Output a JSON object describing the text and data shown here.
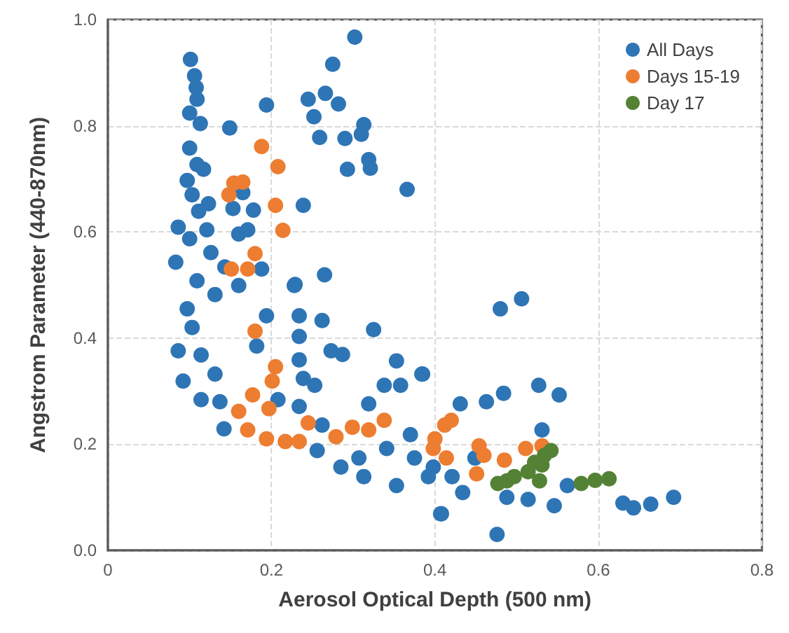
{
  "chart_data": {
    "type": "scatter",
    "xlabel": "Aerosol Optical Depth (500 nm)",
    "ylabel": "Angstrom Parameter (440-870nm)",
    "xlim": [
      0,
      0.8
    ],
    "xticks": [
      0,
      0.2,
      0.4,
      0.6,
      0.8
    ],
    "ylim": [
      0,
      1
    ],
    "yticks": [
      {
        "value": 0,
        "label": "0.0"
      },
      {
        "value": 0.2,
        "label": "0.2"
      },
      {
        "value": 0.4,
        "label": "0.4"
      },
      {
        "value": 0.6,
        "label": "0.6"
      },
      {
        "value": 0.8,
        "label": "0.8"
      },
      {
        "value": 1,
        "label": "1.0"
      }
    ],
    "grid": true,
    "legend": "top right",
    "marker": "circle",
    "series": [
      {
        "name": "All Days",
        "color": "#2e75b6",
        "x": [
          0.101,
          0.106,
          0.108,
          0.109,
          0.1,
          0.113,
          0.149,
          0.194,
          0.302,
          0.275,
          0.245,
          0.266,
          0.282,
          0.252,
          0.259,
          0.29,
          0.313,
          0.31,
          0.319,
          0.321,
          0.293,
          0.366,
          0.239,
          0.1,
          0.109,
          0.117,
          0.097,
          0.103,
          0.123,
          0.111,
          0.153,
          0.178,
          0.165,
          0.086,
          0.1,
          0.121,
          0.16,
          0.171,
          0.265,
          0.229,
          0.126,
          0.083,
          0.188,
          0.143,
          0.109,
          0.103,
          0.086,
          0.114,
          0.131,
          0.092,
          0.114,
          0.137,
          0.142,
          0.097,
          0.131,
          0.16,
          0.182,
          0.194,
          0.228,
          0.234,
          0.234,
          0.234,
          0.239,
          0.253,
          0.234,
          0.208,
          0.262,
          0.273,
          0.287,
          0.325,
          0.353,
          0.384,
          0.338,
          0.358,
          0.319,
          0.262,
          0.256,
          0.285,
          0.313,
          0.353,
          0.341,
          0.37,
          0.398,
          0.421,
          0.407,
          0.307,
          0.375,
          0.48,
          0.506,
          0.385,
          0.431,
          0.463,
          0.484,
          0.527,
          0.552,
          0.531,
          0.392,
          0.434,
          0.408,
          0.476,
          0.488,
          0.514,
          0.546,
          0.562,
          0.63,
          0.643,
          0.664,
          0.692,
          0.449
        ],
        "values": [
          0.925,
          0.894,
          0.872,
          0.85,
          0.824,
          0.804,
          0.796,
          0.839,
          0.967,
          0.916,
          0.85,
          0.861,
          0.841,
          0.817,
          0.778,
          0.776,
          0.802,
          0.784,
          0.736,
          0.72,
          0.718,
          0.68,
          0.65,
          0.758,
          0.727,
          0.718,
          0.697,
          0.67,
          0.653,
          0.639,
          0.644,
          0.641,
          0.674,
          0.609,
          0.587,
          0.604,
          0.596,
          0.604,
          0.519,
          0.501,
          0.561,
          0.543,
          0.53,
          0.534,
          0.508,
          0.42,
          0.376,
          0.368,
          0.332,
          0.319,
          0.284,
          0.28,
          0.229,
          0.455,
          0.482,
          0.499,
          0.385,
          0.442,
          0.499,
          0.442,
          0.403,
          0.359,
          0.324,
          0.311,
          0.271,
          0.284,
          0.433,
          0.376,
          0.369,
          0.416,
          0.357,
          0.332,
          0.311,
          0.311,
          0.276,
          0.236,
          0.188,
          0.157,
          0.139,
          0.122,
          0.192,
          0.218,
          0.157,
          0.139,
          0.069,
          0.174,
          0.174,
          0.455,
          0.474,
          0.332,
          0.276,
          0.28,
          0.296,
          0.311,
          0.293,
          0.227,
          0.139,
          0.109,
          0.069,
          0.03,
          0.1,
          0.096,
          0.084,
          0.122,
          0.089,
          0.08,
          0.087,
          0.1,
          0.174
        ]
      },
      {
        "name": "Days 15-19",
        "color": "#ed7d31",
        "x": [
          0.188,
          0.208,
          0.154,
          0.165,
          0.148,
          0.205,
          0.214,
          0.18,
          0.151,
          0.171,
          0.18,
          0.205,
          0.201,
          0.177,
          0.16,
          0.197,
          0.171,
          0.194,
          0.217,
          0.234,
          0.245,
          0.279,
          0.299,
          0.319,
          0.338,
          0.398,
          0.412,
          0.42,
          0.4,
          0.414,
          0.454,
          0.46,
          0.451,
          0.485,
          0.511,
          0.531
        ],
        "values": [
          0.761,
          0.723,
          0.692,
          0.694,
          0.67,
          0.65,
          0.603,
          0.559,
          0.53,
          0.53,
          0.413,
          0.346,
          0.319,
          0.293,
          0.262,
          0.267,
          0.227,
          0.21,
          0.205,
          0.205,
          0.24,
          0.214,
          0.232,
          0.227,
          0.245,
          0.192,
          0.236,
          0.245,
          0.21,
          0.174,
          0.197,
          0.179,
          0.144,
          0.17,
          0.192,
          0.197
        ]
      },
      {
        "name": "Day 17",
        "color": "#548235",
        "x": [
          0.477,
          0.488,
          0.497,
          0.514,
          0.528,
          0.522,
          0.531,
          0.534,
          0.542,
          0.579,
          0.596,
          0.613
        ],
        "values": [
          0.126,
          0.131,
          0.139,
          0.148,
          0.131,
          0.166,
          0.161,
          0.179,
          0.188,
          0.126,
          0.132,
          0.135
        ]
      }
    ]
  }
}
